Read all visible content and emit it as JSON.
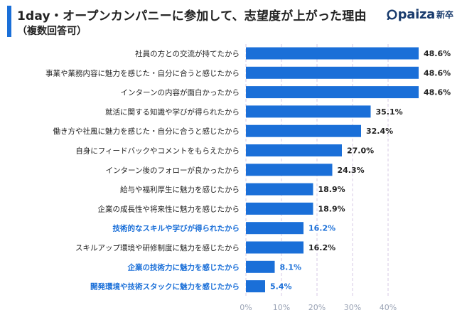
{
  "header": {
    "title": "1day・オープンカンパニーに参加して、志望度が上がった理由",
    "subtitle": "（複数回答可）",
    "logo_word": "paiza",
    "logo_suffix": "新卒"
  },
  "colors": {
    "bar": "#1a6fd8",
    "highlight_text": "#1a6fd8",
    "grid": "#d7c8e6"
  },
  "chart_data": {
    "type": "bar",
    "orientation": "horizontal",
    "title": "1day・オープンカンパニーに参加して、志望度が上がった理由",
    "subtitle": "（複数回答可）",
    "xlim": [
      0,
      50
    ],
    "ticks": [
      0,
      10,
      20,
      30,
      40
    ],
    "tick_labels": [
      "0%",
      "10%",
      "20%",
      "30%",
      "40%"
    ],
    "grid": true,
    "categories": [
      "社員の方との交流が持てたから",
      "事業や業務内容に魅力を感じた・自分に合うと感じたから",
      "インターンの内容が面白かったから",
      "就活に関する知識や学びが得られたから",
      "働き方や社風に魅力を感じた・自分に合うと感じたから",
      "自身にフィードバックやコメントをもらえたから",
      "インターン後のフォローが良かったから",
      "給与や福利厚生に魅力を感じたから",
      "企業の成長性や将来性に魅力を感じたから",
      "技術的なスキルや学びが得られたから",
      "スキルアップ環境や研修制度に魅力を感じたから",
      "企業の技術力に魅力を感じたから",
      "開発環境や技術スタックに魅力を感じたから"
    ],
    "values": [
      48.6,
      48.6,
      48.6,
      35.1,
      32.4,
      27.0,
      24.3,
      18.9,
      18.9,
      16.2,
      16.2,
      8.1,
      5.4
    ],
    "value_labels": [
      "48.6%",
      "48.6%",
      "48.6%",
      "35.1%",
      "32.4%",
      "27.0%",
      "24.3%",
      "18.9%",
      "18.9%",
      "16.2%",
      "16.2%",
      "8.1%",
      "5.4%"
    ],
    "highlighted": [
      false,
      false,
      false,
      false,
      false,
      false,
      false,
      false,
      false,
      true,
      false,
      true,
      true
    ]
  }
}
